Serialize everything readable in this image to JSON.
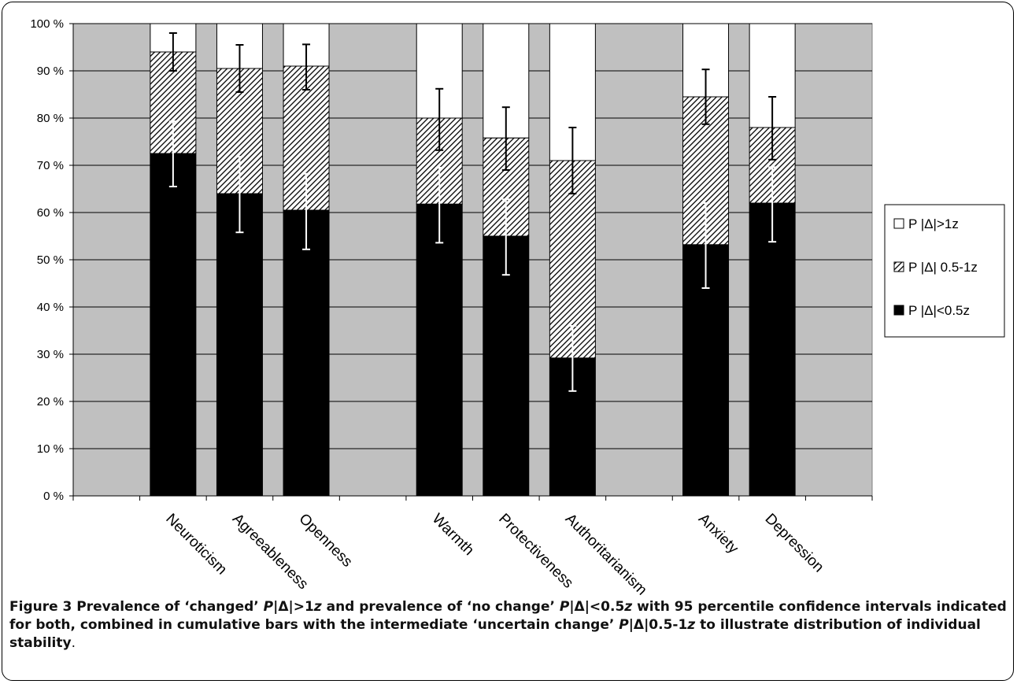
{
  "chart_data": {
    "type": "bar",
    "stacked": true,
    "title": "",
    "xlabel": "",
    "ylabel": "",
    "ylim": [
      0,
      100
    ],
    "y_ticks": [
      "0 %",
      "10 %",
      "20 %",
      "30 %",
      "40 %",
      "50 %",
      "60 %",
      "70 %",
      "80 %",
      "90 %",
      "100 %"
    ],
    "categories": [
      "Neuroticism",
      "Agreeableness",
      "Openness",
      "Warmth",
      "Protectiveness",
      "Authoritarianism",
      "Anxiety",
      "Depression"
    ],
    "series": [
      {
        "name": "P |Δ|<0.5z",
        "values": [
          72.5,
          64,
          60.5,
          61.8,
          55,
          29.2,
          53.2,
          62
        ],
        "color": "#000000",
        "pattern": "solid"
      },
      {
        "name": "P |Δ| 0.5-1z",
        "values": [
          21.5,
          26.5,
          30.5,
          18.2,
          20.8,
          41.8,
          31.3,
          16
        ],
        "color": "#000000",
        "pattern": "hatch"
      },
      {
        "name": "P |Δ|>1z",
        "values": [
          6,
          9.5,
          9,
          20,
          24.2,
          29,
          15.5,
          22
        ],
        "color": "#ffffff",
        "pattern": "empty"
      }
    ],
    "error_bars_low": [
      [
        65.5,
        79.3
      ],
      [
        55.8,
        71.8
      ],
      [
        52.2,
        68.2
      ],
      [
        53.6,
        69.5
      ],
      [
        46.8,
        62.8
      ],
      [
        22.2,
        36
      ],
      [
        44,
        62
      ],
      [
        53.8,
        69.6
      ]
    ],
    "error_bars_high": [
      [
        90,
        98
      ],
      [
        85.5,
        95.5
      ],
      [
        86,
        95.6
      ],
      [
        73.2,
        86.2
      ],
      [
        69,
        82.3
      ],
      [
        64,
        78
      ],
      [
        78.7,
        90.3
      ],
      [
        71.2,
        84.5
      ]
    ],
    "grid": true,
    "legend_position": "right",
    "plot_background": "#c0c0c0"
  },
  "caption": {
    "figure_label": "Figure 3",
    "segments": [
      {
        "text": " Prevalence of ‘changed’ ",
        "italic": false
      },
      {
        "text": "P",
        "italic": true
      },
      {
        "text": "|Δ|>1",
        "italic": false
      },
      {
        "text": "z",
        "italic": true
      },
      {
        "text": " and prevalence of ‘no change’ ",
        "italic": false
      },
      {
        "text": "P",
        "italic": true
      },
      {
        "text": "|Δ|<0.5",
        "italic": false
      },
      {
        "text": "z",
        "italic": true
      },
      {
        "text": " with 95 percentile confidence intervals indicated for both, combined in cumulative bars with the intermediate ‘uncertain change’ ",
        "italic": false
      },
      {
        "text": "P",
        "italic": true
      },
      {
        "text": "|Δ|0.5-1",
        "italic": false
      },
      {
        "text": "z",
        "italic": true
      },
      {
        "text": " to illustrate distribution of individual stability",
        "italic": false
      }
    ],
    "trailing": "."
  }
}
